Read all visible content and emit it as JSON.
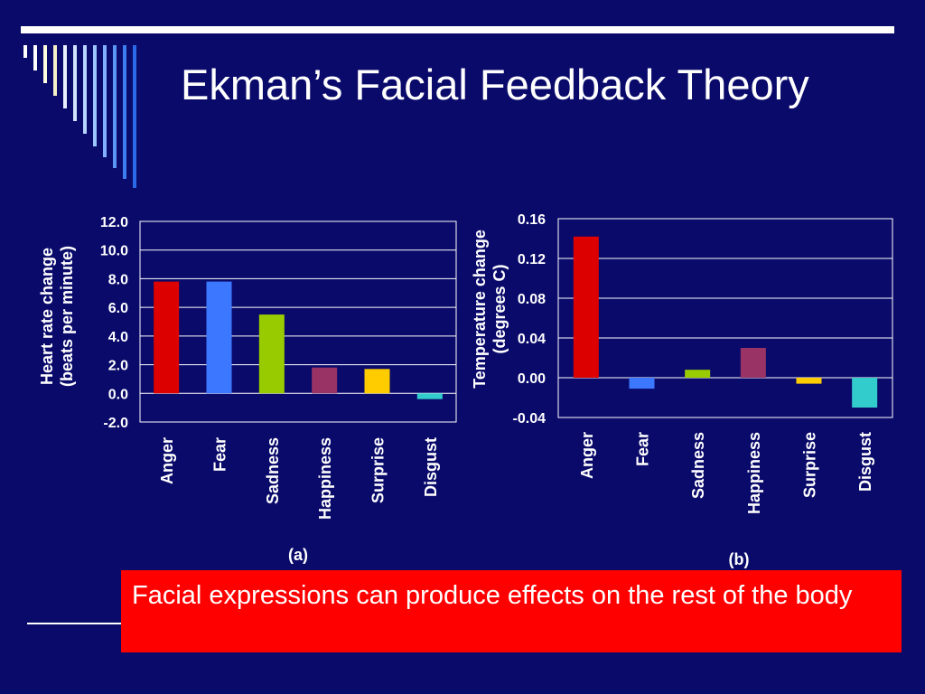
{
  "slide": {
    "title": "Ekman’s Facial Feedback Theory",
    "caption": "Facial expressions can produce effects on the rest of the body",
    "stripe_colors": [
      "#ffffff",
      "#ffffff",
      "#ffffe0",
      "#f5f0c8",
      "#e8f0ff",
      "#d0e4ff",
      "#b8d4ff",
      "#9cc4ff",
      "#80b0ff",
      "#5a96f5",
      "#3c7ef0",
      "#2a6ae8"
    ]
  },
  "chart_data": [
    {
      "type": "bar",
      "caption": "(a)",
      "ylabel": [
        "Heart rate change",
        "(beats per minute)"
      ],
      "categories": [
        "Anger",
        "Fear",
        "Sadness",
        "Happiness",
        "Surprise",
        "Disgust"
      ],
      "values": [
        7.8,
        7.8,
        5.5,
        1.8,
        1.7,
        -0.4
      ],
      "colors": [
        "#dd0000",
        "#3c78ff",
        "#99cc00",
        "#993366",
        "#ffcc00",
        "#33cccc"
      ],
      "ylim": [
        -2.0,
        12.0
      ],
      "yticks": [
        "12.0",
        "10.0",
        "8.0",
        "6.0",
        "4.0",
        "2.0",
        "0.0",
        "-2.0"
      ],
      "ytick_values": [
        12,
        10,
        8,
        6,
        4,
        2,
        0,
        -2
      ],
      "grid": true
    },
    {
      "type": "bar",
      "caption": "(b)",
      "ylabel": [
        "Temperature change",
        "(degrees C)"
      ],
      "categories": [
        "Anger",
        "Fear",
        "Sadness",
        "Happiness",
        "Surprise",
        "Disgust"
      ],
      "values": [
        0.142,
        -0.011,
        0.008,
        0.03,
        -0.006,
        -0.03
      ],
      "colors": [
        "#dd0000",
        "#3c78ff",
        "#99cc00",
        "#993366",
        "#ffcc00",
        "#33cccc"
      ],
      "ylim": [
        -0.04,
        0.16
      ],
      "yticks": [
        "0.16",
        "0.12",
        "0.08",
        "0.04",
        "0.00",
        "-0.04"
      ],
      "ytick_values": [
        0.16,
        0.12,
        0.08,
        0.04,
        0.0,
        -0.04
      ],
      "grid": true
    }
  ]
}
